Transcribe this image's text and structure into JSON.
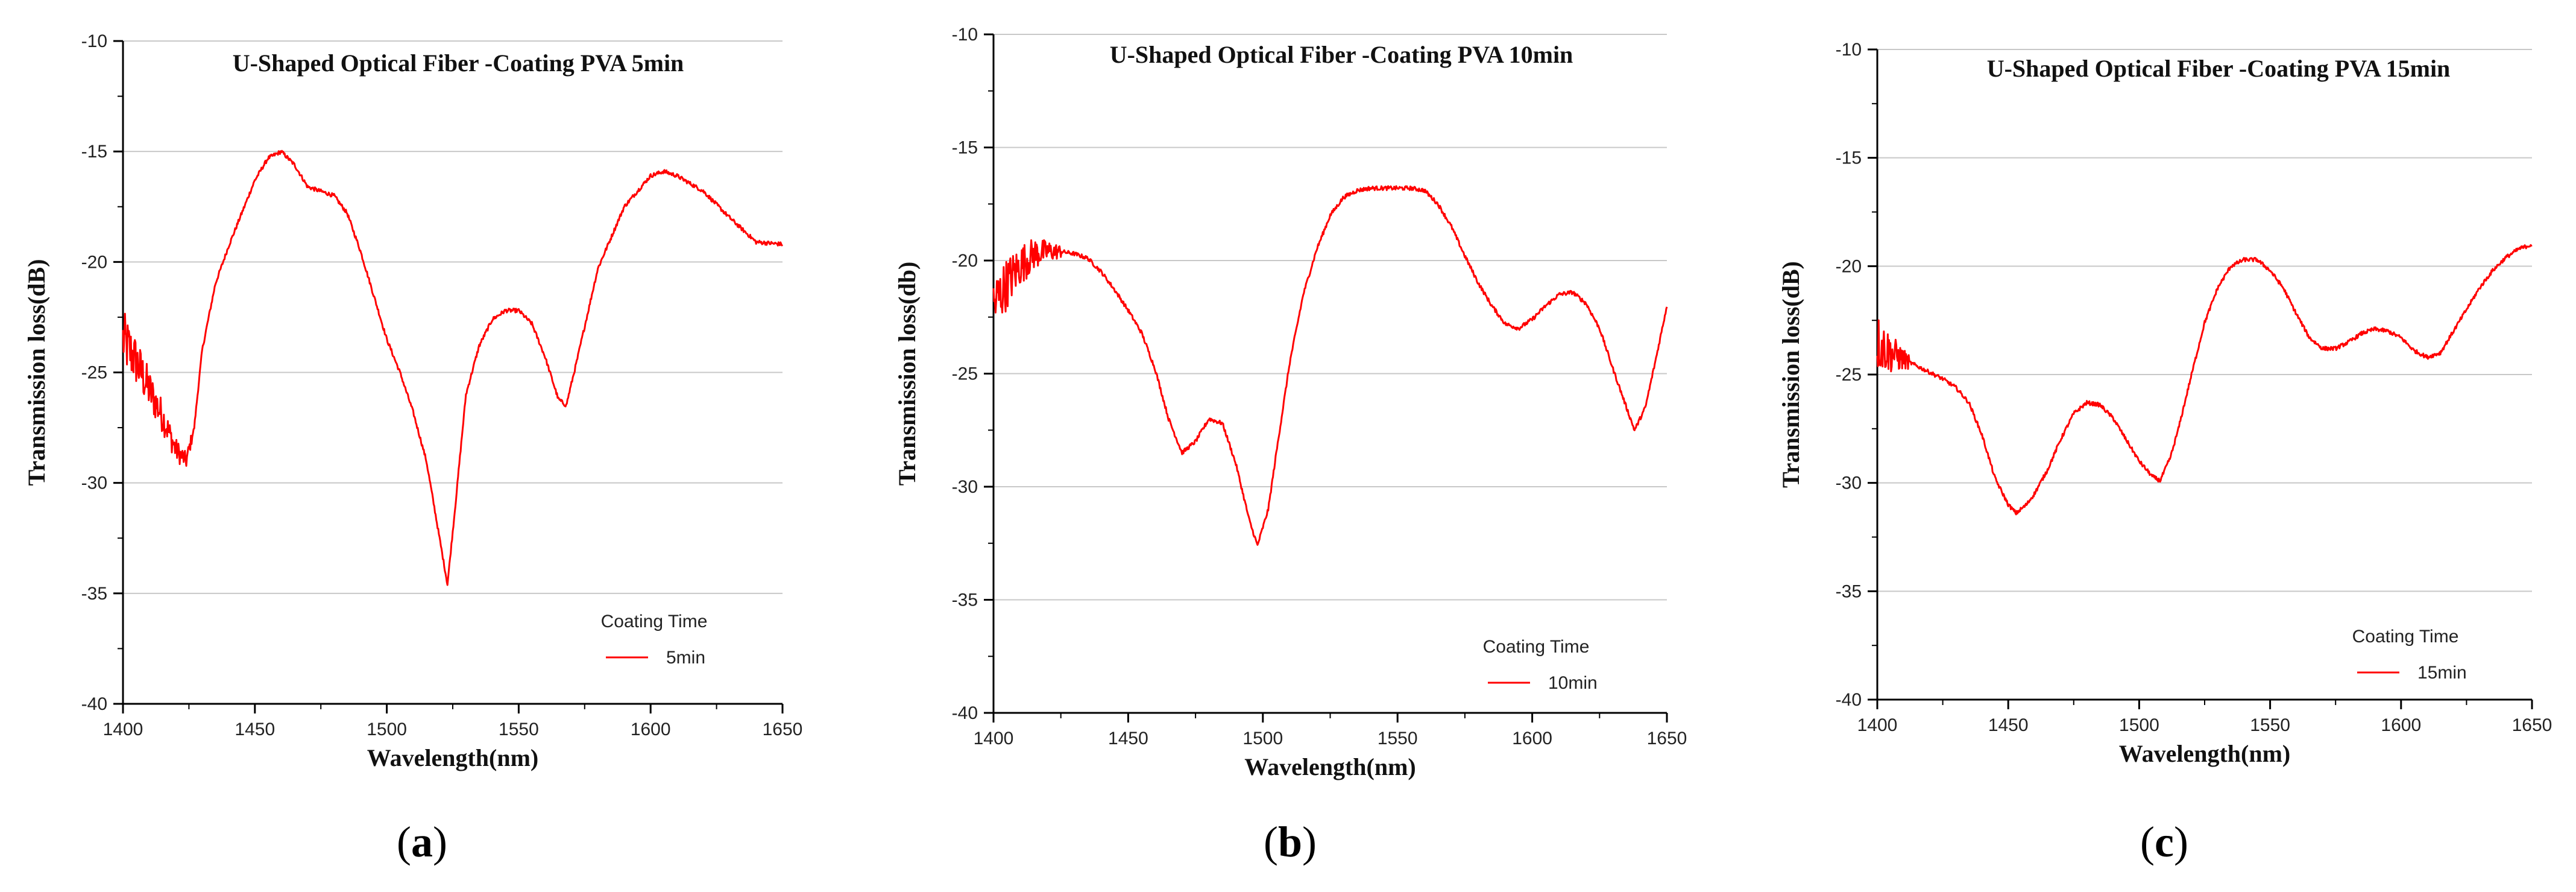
{
  "chart_data": [
    {
      "type": "line",
      "panel_label": "a",
      "title": "U-Shaped Optical Fiber -Coating PVA 5min",
      "xlabel": "Wavelength(nm)",
      "ylabel": "Transmission loss(dB)",
      "xlim": [
        1400,
        1650
      ],
      "ylim": [
        -40,
        -10
      ],
      "xticks": [
        1400,
        1450,
        1500,
        1550,
        1600,
        1650
      ],
      "yticks": [
        -10,
        -15,
        -20,
        -25,
        -30,
        -35,
        -40
      ],
      "grid": true,
      "legend": {
        "title": "Coating Time",
        "position": "bottom-right"
      },
      "series": [
        {
          "name": "5min",
          "color": "#ff0000",
          "noise_until": 1426,
          "x": [
            1400,
            1405,
            1410,
            1415,
            1420,
            1424,
            1427,
            1430,
            1435,
            1440,
            1445,
            1450,
            1455,
            1460,
            1465,
            1470,
            1475,
            1480,
            1485,
            1490,
            1495,
            1500,
            1505,
            1510,
            1515,
            1520,
            1523,
            1526,
            1530,
            1535,
            1540,
            1545,
            1550,
            1555,
            1560,
            1565,
            1568,
            1572,
            1580,
            1590,
            1600,
            1605,
            1610,
            1620,
            1630,
            1640,
            1650
          ],
          "y": [
            -23.5,
            -24.5,
            -25.8,
            -27.0,
            -28.5,
            -29.0,
            -27.5,
            -24.0,
            -21.0,
            -19.3,
            -17.8,
            -16.3,
            -15.3,
            -15.0,
            -15.6,
            -16.6,
            -16.8,
            -17.0,
            -17.8,
            -19.5,
            -21.5,
            -23.5,
            -25.0,
            -26.8,
            -29.0,
            -32.5,
            -34.6,
            -31.0,
            -26.0,
            -23.8,
            -22.6,
            -22.2,
            -22.2,
            -22.8,
            -24.3,
            -26.2,
            -26.5,
            -24.5,
            -20.3,
            -17.5,
            -16.1,
            -15.9,
            -16.1,
            -16.8,
            -18.0,
            -19.1,
            -19.2
          ]
        }
      ]
    },
    {
      "type": "line",
      "panel_label": "b",
      "title": "U-Shaped Optical Fiber -Coating PVA 10min",
      "xlabel": "Wavelength(nm)",
      "ylabel": "Transmission loss(db)",
      "xlim": [
        1400,
        1650
      ],
      "ylim": [
        -40,
        -10
      ],
      "xticks": [
        1400,
        1450,
        1500,
        1550,
        1600,
        1650
      ],
      "yticks": [
        -10,
        -15,
        -20,
        -25,
        -30,
        -35,
        -40
      ],
      "grid": true,
      "legend": {
        "title": "Coating Time",
        "position": "bottom-right"
      },
      "series": [
        {
          "name": "10min",
          "color": "#ff0000",
          "noise_until": 1425,
          "x": [
            1400,
            1405,
            1410,
            1415,
            1420,
            1425,
            1430,
            1435,
            1440,
            1445,
            1450,
            1455,
            1460,
            1465,
            1470,
            1475,
            1480,
            1485,
            1490,
            1495,
            1498,
            1502,
            1505,
            1510,
            1515,
            1520,
            1525,
            1530,
            1535,
            1540,
            1545,
            1550,
            1555,
            1560,
            1565,
            1570,
            1575,
            1580,
            1585,
            1590,
            1595,
            1600,
            1605,
            1610,
            1615,
            1620,
            1625,
            1630,
            1635,
            1638,
            1642,
            1646,
            1650
          ],
          "y": [
            -22.0,
            -21.0,
            -20.2,
            -19.7,
            -19.6,
            -19.6,
            -19.7,
            -19.9,
            -20.5,
            -21.3,
            -22.2,
            -23.2,
            -24.8,
            -27.0,
            -28.5,
            -28.0,
            -27.0,
            -27.2,
            -29.0,
            -31.5,
            -32.6,
            -31.0,
            -28.5,
            -24.5,
            -21.5,
            -19.5,
            -18.0,
            -17.2,
            -16.9,
            -16.8,
            -16.8,
            -16.8,
            -16.8,
            -16.9,
            -17.5,
            -18.5,
            -19.8,
            -21.0,
            -22.0,
            -22.8,
            -23.0,
            -22.6,
            -22.0,
            -21.5,
            -21.4,
            -21.9,
            -23.0,
            -24.8,
            -26.5,
            -27.5,
            -26.5,
            -24.3,
            -22.0
          ]
        }
      ]
    },
    {
      "type": "line",
      "panel_label": "c",
      "title": "U-Shaped Optical Fiber -Coating PVA 15min",
      "xlabel": "Wavelength(nm)",
      "ylabel": "Transmission loss(dB)",
      "xlim": [
        1400,
        1650
      ],
      "ylim": [
        -40,
        -10
      ],
      "xticks": [
        1400,
        1450,
        1500,
        1550,
        1600,
        1650
      ],
      "yticks": [
        -10,
        -15,
        -20,
        -25,
        -30,
        -35,
        -40
      ],
      "grid": true,
      "legend": {
        "title": "Coating Time",
        "position": "bottom-right"
      },
      "series": [
        {
          "name": "15min",
          "color": "#ff0000",
          "noise_until": 1412,
          "x": [
            1400,
            1405,
            1410,
            1415,
            1420,
            1425,
            1430,
            1435,
            1440,
            1445,
            1450,
            1453,
            1457,
            1460,
            1465,
            1470,
            1475,
            1480,
            1485,
            1490,
            1495,
            1500,
            1505,
            1508,
            1512,
            1515,
            1520,
            1525,
            1530,
            1535,
            1540,
            1545,
            1550,
            1555,
            1560,
            1565,
            1570,
            1575,
            1580,
            1585,
            1590,
            1595,
            1600,
            1605,
            1610,
            1615,
            1620,
            1625,
            1630,
            1635,
            1640,
            1645,
            1650
          ],
          "y": [
            -23.5,
            -24.0,
            -24.3,
            -24.6,
            -24.9,
            -25.2,
            -25.6,
            -26.3,
            -27.8,
            -29.8,
            -31.0,
            -31.4,
            -31.0,
            -30.5,
            -29.4,
            -28.0,
            -26.8,
            -26.3,
            -26.4,
            -27.0,
            -28.0,
            -29.0,
            -29.7,
            -29.9,
            -28.8,
            -27.5,
            -25.0,
            -22.6,
            -21.0,
            -20.0,
            -19.7,
            -19.7,
            -20.2,
            -21.0,
            -22.2,
            -23.3,
            -23.8,
            -23.8,
            -23.5,
            -23.1,
            -22.9,
            -23.0,
            -23.3,
            -23.9,
            -24.2,
            -24.0,
            -23.0,
            -22.0,
            -21.0,
            -20.2,
            -19.6,
            -19.2,
            -19.0
          ]
        }
      ]
    }
  ]
}
